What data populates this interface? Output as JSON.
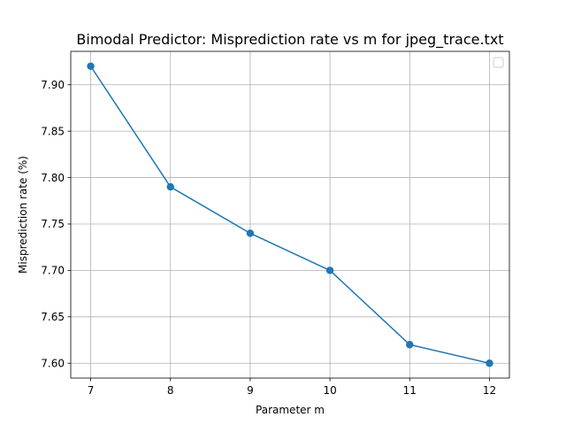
{
  "chart_data": {
    "type": "line",
    "title": "Bimodal Predictor: Misprediction rate vs m for jpeg_trace.txt",
    "xlabel": "Parameter m",
    "ylabel": "Misprediction rate (%)",
    "x": [
      7,
      8,
      9,
      10,
      11,
      12
    ],
    "series": [
      {
        "values": [
          7.92,
          7.79,
          7.74,
          7.7,
          7.62,
          7.6
        ],
        "color": "#1f77b4",
        "marker": "circle"
      }
    ],
    "xlim": [
      6.75,
      12.25
    ],
    "ylim": [
      7.584,
      7.936
    ],
    "x_ticks": [
      7,
      8,
      9,
      10,
      11,
      12
    ],
    "x_tick_labels": [
      "7",
      "8",
      "9",
      "10",
      "11",
      "12"
    ],
    "y_ticks": [
      7.6,
      7.65,
      7.7,
      7.75,
      7.8,
      7.85,
      7.9
    ],
    "y_tick_labels": [
      "7.60",
      "7.65",
      "7.70",
      "7.75",
      "7.80",
      "7.85",
      "7.90"
    ],
    "grid": true,
    "legend": {
      "placement": "top-right",
      "entries": []
    }
  }
}
